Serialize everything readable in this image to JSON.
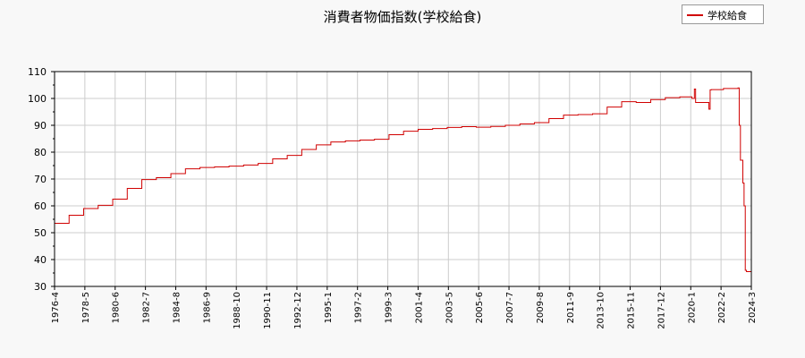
{
  "chart_data": {
    "type": "line",
    "title": "消費者物価指数(学校給食)",
    "xlabel": "",
    "ylabel": "",
    "ylim": [
      30,
      110
    ],
    "yticks": [
      30,
      40,
      50,
      60,
      70,
      80,
      90,
      100,
      110
    ],
    "xlim": [
      "1976-04",
      "2024-03"
    ],
    "xticks": [
      "1976-4",
      "1978-5",
      "1980-6",
      "1982-7",
      "1984-8",
      "1986-9",
      "1988-10",
      "1990-11",
      "1992-12",
      "1995-1",
      "1997-2",
      "1999-3",
      "2001-4",
      "2003-5",
      "2005-6",
      "2007-7",
      "2009-8",
      "2011-9",
      "2013-10",
      "2015-11",
      "2017-12",
      "2020-1",
      "2022-2",
      "2024-3"
    ],
    "grid": true,
    "legend_position": "top-right",
    "color": "#d00000",
    "series": [
      {
        "name": "学校給食",
        "x": [
          "1976-04",
          "1977-04",
          "1978-04",
          "1979-04",
          "1980-04",
          "1981-04",
          "1982-04",
          "1983-04",
          "1984-04",
          "1985-04",
          "1986-04",
          "1987-04",
          "1988-04",
          "1989-04",
          "1990-04",
          "1991-04",
          "1992-04",
          "1993-04",
          "1994-04",
          "1995-04",
          "1996-04",
          "1997-04",
          "1998-04",
          "1999-04",
          "2000-04",
          "2001-04",
          "2002-04",
          "2003-04",
          "2004-04",
          "2005-04",
          "2006-04",
          "2007-04",
          "2008-04",
          "2009-04",
          "2010-04",
          "2011-04",
          "2012-04",
          "2013-04",
          "2014-04",
          "2015-04",
          "2016-04",
          "2017-04",
          "2018-04",
          "2019-04",
          "2020-02",
          "2020-04",
          "2020-05",
          "2021-04",
          "2021-05",
          "2021-06",
          "2022-04",
          "2023-04",
          "2023-05",
          "2023-06",
          "2023-08",
          "2023-09",
          "2023-10",
          "2023-11",
          "2024-03"
        ],
        "values": [
          53.5,
          56.5,
          59.0,
          60.2,
          62.5,
          66.5,
          69.8,
          70.5,
          72.0,
          73.8,
          74.3,
          74.5,
          74.8,
          75.2,
          75.8,
          77.5,
          78.8,
          81.0,
          82.7,
          83.8,
          84.2,
          84.5,
          84.8,
          86.5,
          87.8,
          88.5,
          88.8,
          89.2,
          89.5,
          89.3,
          89.6,
          90.0,
          90.5,
          91.0,
          92.5,
          93.8,
          94.0,
          94.3,
          96.8,
          98.8,
          98.5,
          99.6,
          100.3,
          100.6,
          100.0,
          103.5,
          98.5,
          96.0,
          103.2,
          103.3,
          103.7,
          103.9,
          90.0,
          77.0,
          68.5,
          60.0,
          36.0,
          35.5,
          35.5
        ]
      }
    ]
  }
}
